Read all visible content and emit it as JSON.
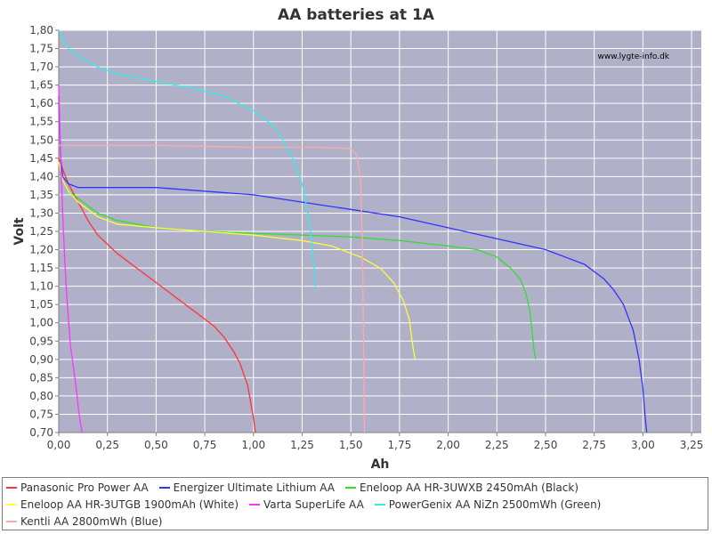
{
  "chart_data": {
    "type": "line",
    "title": "AA batteries at 1A",
    "xlabel": "Ah",
    "ylabel": "Volt",
    "watermark": "www.lygte-info.dk",
    "xlim": [
      0,
      3.3
    ],
    "ylim": [
      0.7,
      1.8
    ],
    "xticks": [
      "0,00",
      "0,25",
      "0,50",
      "0,75",
      "1,00",
      "1,25",
      "1,50",
      "1,75",
      "2,00",
      "2,25",
      "2,50",
      "2,75",
      "3,00",
      "3,25"
    ],
    "yticks": [
      "0,70",
      "0,75",
      "0,80",
      "0,85",
      "0,90",
      "0,95",
      "1,00",
      "1,05",
      "1,10",
      "1,15",
      "1,20",
      "1,25",
      "1,30",
      "1,35",
      "1,40",
      "1,45",
      "1,50",
      "1,55",
      "1,60",
      "1,65",
      "1,70",
      "1,75",
      "1,80"
    ],
    "grid": true,
    "legend_position": "bottom",
    "plot_background": "#b0b0c8",
    "series": [
      {
        "name": "Panasonic Pro Power AA",
        "color": "#ff3333",
        "x": [
          0.0,
          0.02,
          0.05,
          0.1,
          0.15,
          0.2,
          0.3,
          0.4,
          0.5,
          0.6,
          0.7,
          0.8,
          0.85,
          0.9,
          0.93,
          0.95,
          0.97,
          0.98,
          0.99,
          1.0,
          1.01
        ],
        "y": [
          1.45,
          1.42,
          1.38,
          1.33,
          1.28,
          1.24,
          1.19,
          1.15,
          1.11,
          1.07,
          1.03,
          0.99,
          0.96,
          0.92,
          0.89,
          0.86,
          0.83,
          0.8,
          0.77,
          0.74,
          0.7
        ]
      },
      {
        "name": "Energizer Ultimate Lithium AA",
        "color": "#3333ff",
        "x": [
          0.0,
          0.01,
          0.02,
          0.05,
          0.1,
          0.2,
          0.5,
          0.75,
          1.0,
          1.25,
          1.5,
          1.75,
          2.0,
          2.25,
          2.5,
          2.7,
          2.8,
          2.85,
          2.9,
          2.95,
          2.98,
          3.0,
          3.01,
          3.02
        ],
        "y": [
          1.62,
          1.45,
          1.4,
          1.38,
          1.37,
          1.37,
          1.37,
          1.36,
          1.35,
          1.33,
          1.31,
          1.29,
          1.26,
          1.23,
          1.2,
          1.16,
          1.12,
          1.09,
          1.05,
          0.98,
          0.9,
          0.82,
          0.75,
          0.7
        ]
      },
      {
        "name": "Eneloop AA HR-3UWXB 2450mAh (Black)",
        "color": "#33dd33",
        "x": [
          0.0,
          0.02,
          0.05,
          0.1,
          0.2,
          0.3,
          0.5,
          0.75,
          1.0,
          1.25,
          1.5,
          1.75,
          2.0,
          2.15,
          2.25,
          2.32,
          2.37,
          2.4,
          2.42,
          2.43,
          2.44,
          2.45
        ],
        "y": [
          1.44,
          1.39,
          1.36,
          1.34,
          1.3,
          1.28,
          1.26,
          1.25,
          1.245,
          1.24,
          1.235,
          1.225,
          1.21,
          1.2,
          1.18,
          1.15,
          1.12,
          1.08,
          1.03,
          0.98,
          0.93,
          0.9
        ]
      },
      {
        "name": "Eneloop AA HR-3UTGB 1900mAh (White)",
        "color": "#ffff33",
        "x": [
          0.0,
          0.02,
          0.05,
          0.1,
          0.2,
          0.3,
          0.5,
          0.75,
          1.0,
          1.25,
          1.4,
          1.55,
          1.65,
          1.72,
          1.77,
          1.8,
          1.81,
          1.82,
          1.83
        ],
        "y": [
          1.44,
          1.39,
          1.36,
          1.33,
          1.29,
          1.27,
          1.26,
          1.25,
          1.24,
          1.225,
          1.21,
          1.18,
          1.15,
          1.11,
          1.06,
          1.01,
          0.97,
          0.93,
          0.9
        ]
      },
      {
        "name": "Varta SuperLife AA",
        "color": "#ff33ff",
        "x": [
          0.0,
          0.005,
          0.01,
          0.02,
          0.03,
          0.04,
          0.05,
          0.06,
          0.07,
          0.08,
          0.09,
          0.1,
          0.11,
          0.12
        ],
        "y": [
          1.65,
          1.55,
          1.45,
          1.3,
          1.18,
          1.08,
          1.01,
          0.94,
          0.9,
          0.86,
          0.82,
          0.77,
          0.73,
          0.7
        ]
      },
      {
        "name": "PowerGenix AA NiZn 2500mWh (Green)",
        "color": "#33eeee",
        "x": [
          0.0,
          0.02,
          0.05,
          0.1,
          0.2,
          0.3,
          0.5,
          0.7,
          0.85,
          1.0,
          1.1,
          1.15,
          1.2,
          1.25,
          1.28,
          1.3,
          1.31,
          1.32
        ],
        "y": [
          1.8,
          1.78,
          1.75,
          1.73,
          1.7,
          1.68,
          1.66,
          1.64,
          1.62,
          1.58,
          1.54,
          1.5,
          1.45,
          1.38,
          1.3,
          1.22,
          1.15,
          1.09
        ]
      },
      {
        "name": "Kentli AA 2800mWh (Blue)",
        "color": "#ffaaaa",
        "x": [
          0.0,
          0.05,
          0.5,
          1.0,
          1.3,
          1.45,
          1.5,
          1.53,
          1.55,
          1.56,
          1.565,
          1.57
        ],
        "y": [
          1.485,
          1.485,
          1.485,
          1.48,
          1.48,
          1.478,
          1.475,
          1.46,
          1.4,
          1.2,
          0.95,
          0.7
        ]
      }
    ]
  }
}
